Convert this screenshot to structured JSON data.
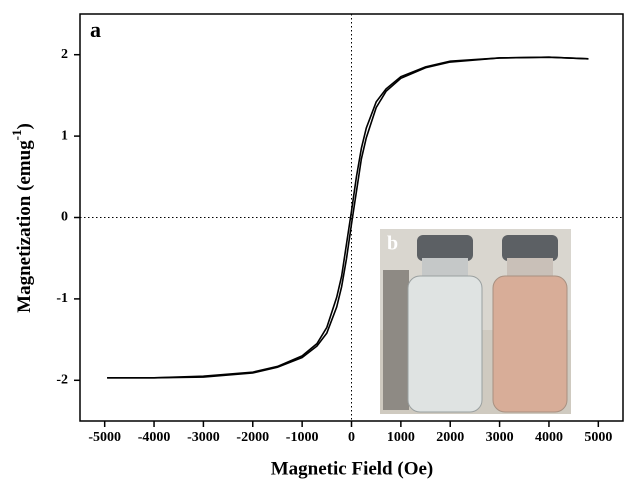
{
  "chart_data": {
    "type": "line",
    "panel_label": "a",
    "inset_label": "b",
    "x_label": "Magnetic Field (Oe)",
    "y_label": [
      "Magnetization (emug",
      "-1",
      ")"
    ],
    "x": [
      -4950,
      -4000,
      -3000,
      -2000,
      -1500,
      -1000,
      -700,
      -500,
      -300,
      -200,
      -100,
      0,
      100,
      200,
      300,
      500,
      700,
      1000,
      1500,
      2000,
      3000,
      4000,
      4800
    ],
    "series": [
      {
        "color": "#000000",
        "values": [
          -1.97,
          -1.97,
          -1.96,
          -1.91,
          -1.84,
          -1.72,
          -1.58,
          -1.42,
          -1.1,
          -0.85,
          -0.5,
          -0.08,
          0.32,
          0.72,
          0.98,
          1.35,
          1.55,
          1.71,
          1.84,
          1.91,
          1.96,
          1.97,
          1.95
        ]
      },
      {
        "color": "#000000",
        "values": [
          -1.97,
          -1.97,
          -1.95,
          -1.9,
          -1.83,
          -1.7,
          -1.55,
          -1.35,
          -0.98,
          -0.72,
          -0.32,
          0.08,
          0.5,
          0.85,
          1.1,
          1.42,
          1.58,
          1.73,
          1.85,
          1.92,
          1.96,
          1.97,
          1.95
        ]
      }
    ],
    "xlim": [
      -5500,
      5500
    ],
    "ylim": [
      -2.5,
      2.5
    ],
    "xticks": [
      -5000,
      -4000,
      -3000,
      -2000,
      -1000,
      0,
      1000,
      2000,
      3000,
      4000,
      5000
    ],
    "yticks": [
      -2,
      -1,
      0,
      1,
      2
    ],
    "zero_lines": true
  }
}
